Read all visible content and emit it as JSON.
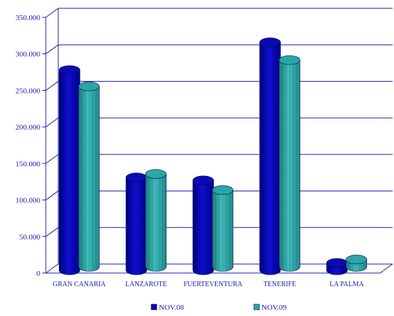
{
  "chart_data": {
    "type": "bar",
    "style": "3d-cylinder",
    "categories": [
      "GRAN CANARIA",
      "LANZAROTE",
      "FUERTEVENTURA",
      "TENERIFE",
      "LA PALMA"
    ],
    "series": [
      {
        "name": "NOV.08",
        "values": [
          274000,
          127000,
          123000,
          312000,
          10000
        ],
        "color": "#0a0ab4"
      },
      {
        "name": "NOV.09",
        "values": [
          247000,
          127000,
          105000,
          283000,
          10000
        ],
        "color": "#2ba6a6"
      }
    ],
    "ylim": [
      0,
      350000
    ],
    "yticks": [
      "0",
      "50.000",
      "100.000",
      "150.000",
      "200.000",
      "250.000",
      "300.000",
      "350.000"
    ],
    "grid": true,
    "legend_position": "bottom",
    "axis_color": "#1a1aa6"
  }
}
